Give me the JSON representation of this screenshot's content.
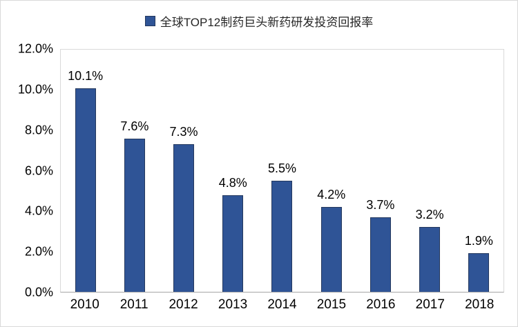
{
  "chart_data": {
    "type": "bar",
    "legend": [
      "全球TOP12制药巨头新药研发投资回报率"
    ],
    "legend_position": "top",
    "categories": [
      "2010",
      "2011",
      "2012",
      "2013",
      "2014",
      "2015",
      "2016",
      "2017",
      "2018"
    ],
    "values": [
      10.1,
      7.6,
      7.3,
      4.8,
      5.5,
      4.2,
      3.7,
      3.2,
      1.9
    ],
    "data_labels": [
      "10.1%",
      "7.6%",
      "7.3%",
      "4.8%",
      "5.5%",
      "4.2%",
      "3.7%",
      "3.2%",
      "1.9%"
    ],
    "xlabel": "",
    "ylabel": "",
    "ylim": [
      0,
      12
    ],
    "ytick_step": 2,
    "ytick_labels": [
      "0.0%",
      "2.0%",
      "4.0%",
      "6.0%",
      "8.0%",
      "10.0%",
      "12.0%"
    ],
    "grid": false,
    "colors": {
      "bar_fill": "#2F5496",
      "bar_border": "#24385D",
      "plot_border": "#D9D9D9",
      "axis_line": "#A6A6A6",
      "text": "#000000"
    }
  }
}
